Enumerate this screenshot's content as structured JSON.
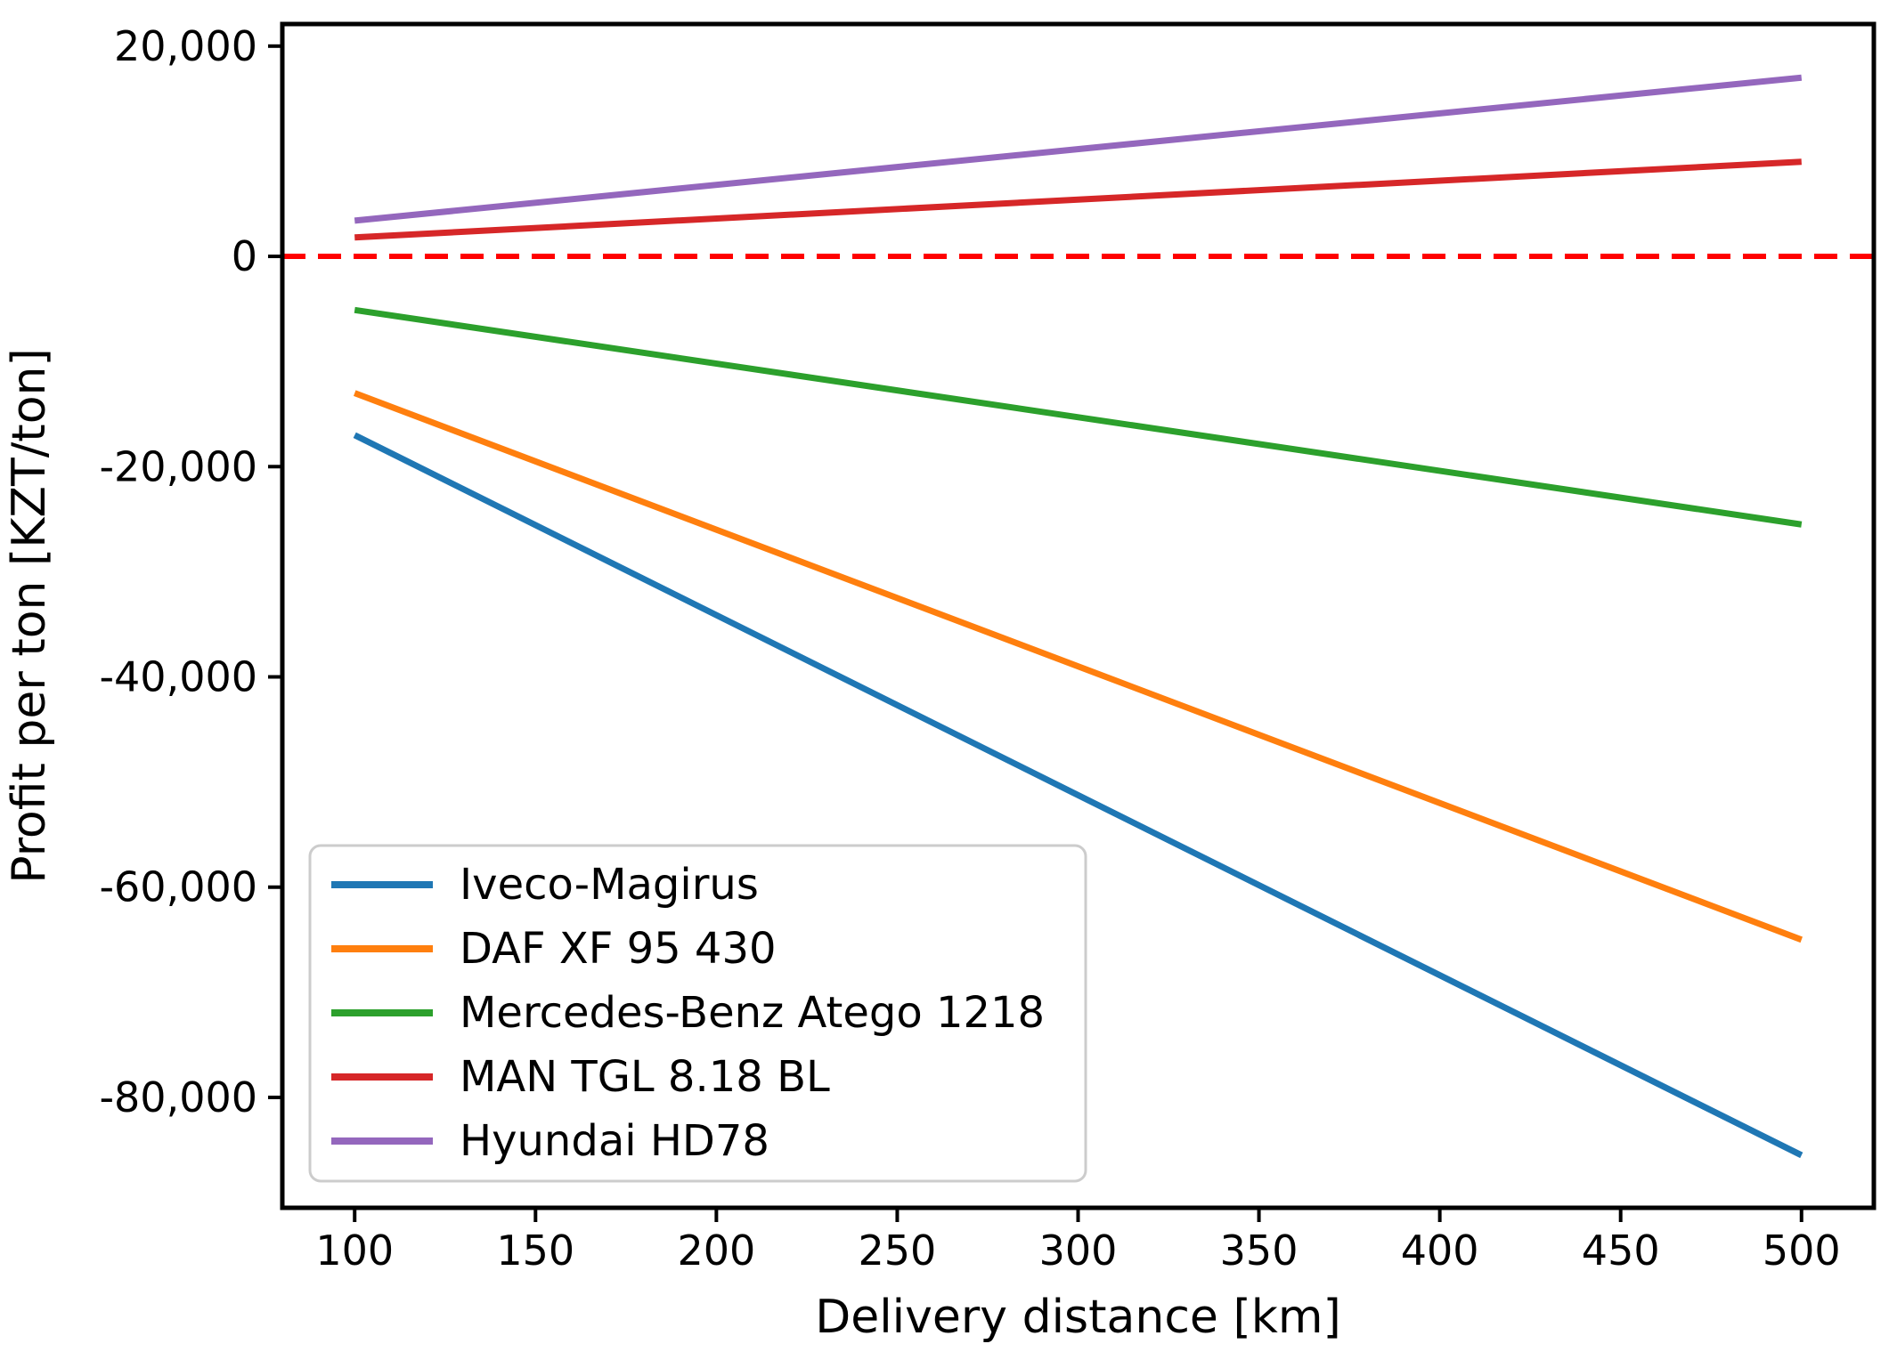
{
  "figure": {
    "background": "#ffffff",
    "text_color": "#000000",
    "spine_color": "#000000"
  },
  "chart_data": {
    "type": "line",
    "title": "",
    "xlabel": "Delivery distance [km]",
    "ylabel": "Profit per ton [KZT/ton]",
    "xlim": [
      80,
      520
    ],
    "ylim": [
      -90500,
      22100
    ],
    "xticks": [
      100,
      150,
      200,
      250,
      300,
      350,
      400,
      450,
      500
    ],
    "yticks": [
      20000,
      0,
      -20000,
      -40000,
      -60000,
      -80000
    ],
    "x": [
      100,
      500
    ],
    "series": [
      {
        "name": "Iveco-Magirus",
        "color": "#1f77b4",
        "values": [
          -17000,
          -85500
        ]
      },
      {
        "name": "DAF XF 95 430",
        "color": "#ff7f0e",
        "values": [
          -13000,
          -65000
        ]
      },
      {
        "name": "Mercedes-Benz Atego 1218",
        "color": "#2ca02c",
        "values": [
          -5100,
          -25500
        ]
      },
      {
        "name": "MAN TGL 8.18 BL",
        "color": "#d62728",
        "values": [
          1800,
          9000
        ]
      },
      {
        "name": "Hyundai HD78",
        "color": "#9467bd",
        "values": [
          3400,
          17000
        ]
      }
    ],
    "reference_line": {
      "y": 0,
      "color": "#ff0000",
      "style": "dashed"
    },
    "legend": {
      "position": "lower left",
      "entries": [
        "Iveco-Magirus",
        "DAF XF 95 430",
        "Mercedes-Benz Atego 1218",
        "MAN TGL 8.18 BL",
        "Hyundai HD78"
      ]
    },
    "grid": false
  }
}
